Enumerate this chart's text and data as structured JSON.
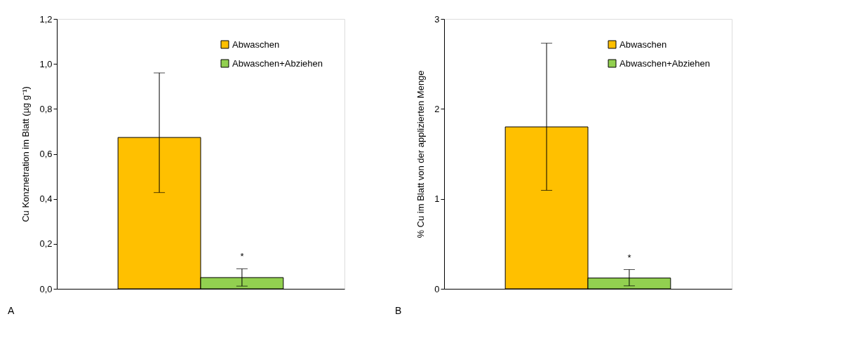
{
  "chart_data": [
    {
      "type": "bar",
      "ylabel": "Cu Konznetration im Blatt (µg g⁻¹)",
      "categories": [
        null
      ],
      "ylim": [
        0,
        1.2
      ],
      "yticks": [
        {
          "value": 0,
          "label": "0,0"
        },
        {
          "value": 0.2,
          "label": "0,2"
        },
        {
          "value": 0.4,
          "label": "0,4"
        },
        {
          "value": 0.6,
          "label": "0,6"
        },
        {
          "value": 0.8,
          "label": "0,8"
        },
        {
          "value": 1.0,
          "label": "1,0"
        },
        {
          "value": 1.2,
          "label": "1,2"
        }
      ],
      "series": [
        {
          "name": "Abwaschen",
          "color": "#ffc000",
          "values": [
            0.673
          ],
          "errors": [
            [
              0.428,
              0.96
            ]
          ]
        },
        {
          "name": "Abwaschen+Abziehen",
          "color": "#92d050",
          "values": [
            0.05
          ],
          "errors": [
            [
              0.012,
              0.089
            ]
          ]
        }
      ],
      "annotations": [
        "*",
        "A"
      ],
      "legend": "top right"
    },
    {
      "type": "bar",
      "ylabel": "% Cu im Blatt von der applizierten Menge",
      "categories": [
        null
      ],
      "ylim": [
        0,
        3
      ],
      "yticks": [
        0,
        1,
        2,
        3
      ],
      "series": [
        {
          "name": "Abwaschen",
          "color": "#ffc000",
          "values": [
            1.8
          ],
          "errors": [
            [
              1.095,
              2.73
            ]
          ]
        },
        {
          "name": "Abwaschen+Abziehen",
          "color": "#92d050",
          "values": [
            0.12
          ],
          "errors": [
            [
              0.033,
              0.214
            ]
          ]
        }
      ],
      "annotations": [
        "*",
        "B"
      ],
      "legend": "top right"
    }
  ]
}
